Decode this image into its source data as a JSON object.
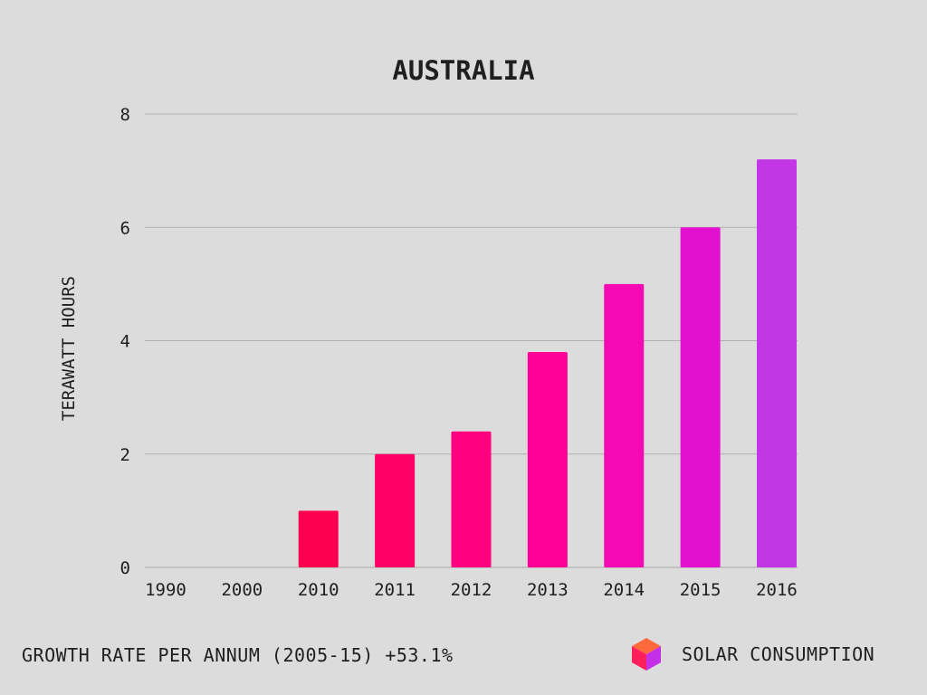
{
  "chart_data": {
    "type": "bar",
    "title": "AUSTRALIA",
    "ylabel": "TERAWATT HOURS",
    "xlabel": "",
    "categories": [
      "1990",
      "2000",
      "2010",
      "2011",
      "2012",
      "2013",
      "2014",
      "2015",
      "2016"
    ],
    "values": [
      0,
      0,
      1.0,
      2.0,
      2.4,
      3.8,
      5.0,
      6.0,
      7.2
    ],
    "bar_colors": [
      "#ff0050",
      "#ff0050",
      "#ff0050",
      "#ff0066",
      "#ff0080",
      "#ff0096",
      "#f50ab4",
      "#e410d0",
      "#c236e6"
    ],
    "ylim": [
      0,
      8
    ],
    "yticks": [
      0,
      2,
      4,
      6,
      8
    ],
    "grid": true
  },
  "footer": {
    "growth_text": "GROWTH RATE PER ANNUM (2005-15) +53.1%",
    "brand_label": "SOLAR CONSUMPTION",
    "brand_icon": "cube-icon"
  },
  "colors": {
    "background": "#dcdcdc",
    "gridline": "#b0b0b0",
    "text": "#1f1f1f"
  }
}
